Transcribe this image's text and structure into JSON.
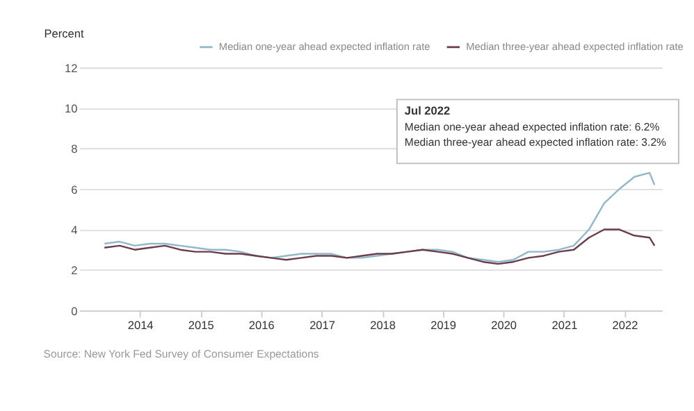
{
  "chart_data": {
    "type": "line",
    "ylabel": "Percent",
    "x": [
      "2013-06",
      "2013-09",
      "2013-12",
      "2014-03",
      "2014-06",
      "2014-09",
      "2014-12",
      "2015-03",
      "2015-06",
      "2015-09",
      "2015-12",
      "2016-03",
      "2016-06",
      "2016-09",
      "2016-12",
      "2017-03",
      "2017-06",
      "2017-09",
      "2017-12",
      "2018-03",
      "2018-06",
      "2018-09",
      "2018-12",
      "2019-03",
      "2019-06",
      "2019-09",
      "2019-12",
      "2020-03",
      "2020-06",
      "2020-09",
      "2020-12",
      "2021-03",
      "2021-06",
      "2021-09",
      "2021-12",
      "2022-03",
      "2022-06",
      "2022-07"
    ],
    "series": [
      {
        "name": "Median one-year ahead expected inflation rate",
        "color": "#8fb8c8",
        "values": [
          3.3,
          3.4,
          3.2,
          3.3,
          3.3,
          3.2,
          3.1,
          3.0,
          3.0,
          2.9,
          2.7,
          2.6,
          2.7,
          2.8,
          2.8,
          2.8,
          2.6,
          2.6,
          2.7,
          2.8,
          2.9,
          3.0,
          3.0,
          2.9,
          2.6,
          2.5,
          2.4,
          2.5,
          2.9,
          2.9,
          3.0,
          3.2,
          4.0,
          5.3,
          6.0,
          6.6,
          6.8,
          6.2
        ]
      },
      {
        "name": "Median three-year ahead expected inflation rate",
        "color": "#6b3d4a",
        "values": [
          3.1,
          3.2,
          3.0,
          3.1,
          3.2,
          3.0,
          2.9,
          2.9,
          2.8,
          2.8,
          2.7,
          2.6,
          2.5,
          2.6,
          2.7,
          2.7,
          2.6,
          2.7,
          2.8,
          2.8,
          2.9,
          3.0,
          2.9,
          2.8,
          2.6,
          2.4,
          2.3,
          2.4,
          2.6,
          2.7,
          2.9,
          3.0,
          3.6,
          4.0,
          4.0,
          3.7,
          3.6,
          3.2
        ]
      }
    ],
    "xlim": [
      "2013-01-01",
      "2022-08-15"
    ],
    "xticks": [
      {
        "value": "2014-01-01",
        "label": "2014"
      },
      {
        "value": "2015-01-01",
        "label": "2015"
      },
      {
        "value": "2016-01-01",
        "label": "2016"
      },
      {
        "value": "2017-01-01",
        "label": "2017"
      },
      {
        "value": "2018-01-01",
        "label": "2018"
      },
      {
        "value": "2019-01-01",
        "label": "2019"
      },
      {
        "value": "2020-01-01",
        "label": "2020"
      },
      {
        "value": "2021-01-01",
        "label": "2021"
      },
      {
        "value": "2022-01-01",
        "label": "2022"
      }
    ],
    "ylim": [
      0,
      12
    ],
    "yticks": [
      0,
      2,
      4,
      6,
      8,
      10,
      12
    ],
    "grid": "y",
    "legend": "top right",
    "marker": "none",
    "line_style": "solid",
    "annotations": [
      "Jul 2022",
      "Median one-year ahead expected inflation rate: 6.2%",
      "Median three-year ahead expected inflation rate: 3.2%",
      "Source: New York Fed Survey of Consumer Expectations"
    ]
  }
}
